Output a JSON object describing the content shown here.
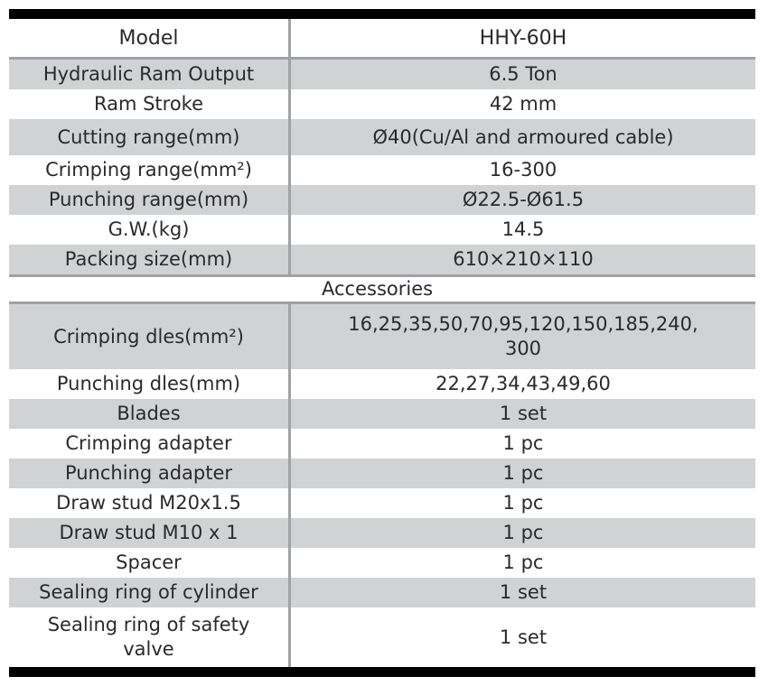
{
  "table": {
    "header": {
      "label": "Model",
      "value": "HHY-60H"
    },
    "specs": [
      {
        "label": "Hydraulic Ram Output",
        "value": "6.5 Ton"
      },
      {
        "label": "Ram Stroke",
        "value": "42 mm"
      },
      {
        "label": "Cutting range(mm)",
        "value": "Ø40(Cu/Al and armoured cable)"
      },
      {
        "label": "Crimping range(mm²)",
        "value": "16-300"
      },
      {
        "label": "Punching range(mm)",
        "value": "Ø22.5-Ø61.5"
      },
      {
        "label": "G.W.(kg)",
        "value": "14.5"
      },
      {
        "label": "Packing size(mm)",
        "value": "610×210×110"
      }
    ],
    "section_title": "Accessories",
    "accessories": [
      {
        "label": "Crimping dles(mm²)",
        "value": "16,25,35,50,70,95,120,150,185,240, 300"
      },
      {
        "label": "Punching dles(mm)",
        "value": "22,27,34,43,49,60"
      },
      {
        "label": "Blades",
        "value": "1 set"
      },
      {
        "label": "Crimping adapter",
        "value": "1 pc"
      },
      {
        "label": "Punching adapter",
        "value": "1 pc"
      },
      {
        "label": "Draw stud M20x1.5",
        "value": "1 pc"
      },
      {
        "label": "Draw stud M10 x 1",
        "value": "1 pc"
      },
      {
        "label": "Spacer",
        "value": "1 pc"
      },
      {
        "label": "Sealing ring of cylinder",
        "value": "1 set"
      },
      {
        "label": "Sealing ring of safety valve",
        "value": "1 set"
      }
    ]
  },
  "colors": {
    "band_gray": "#d1d2d4",
    "rule_gray": "#a0a2a5",
    "frame_black": "#000000",
    "text": "#2a2a2a"
  }
}
